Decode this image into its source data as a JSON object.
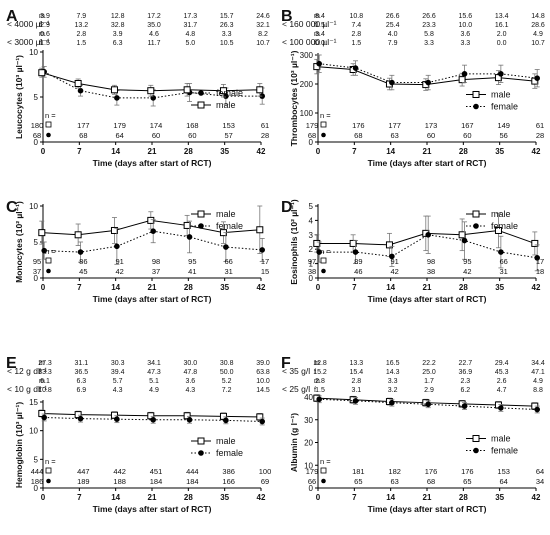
{
  "figure": {
    "x_label": "Time (days after start of RCT)",
    "x_ticks": [
      0,
      7,
      14,
      21,
      28,
      35,
      42
    ],
    "x_tick_labels": [
      "0",
      "7",
      "14",
      "21",
      "28",
      "35",
      "42"
    ],
    "n_label": "n ="
  },
  "chart_data": [
    {
      "id": "A",
      "letter": "A",
      "type": "line",
      "ylabel": "Leucocytes (10³ µl⁻¹)",
      "ylim": [
        0,
        10
      ],
      "y_ticks": [
        0,
        5,
        10
      ],
      "y_tick_labels": [
        "0",
        "5",
        "10"
      ],
      "legend_position": "middle-right",
      "series": [
        {
          "name": "female",
          "marker": "filled-circle",
          "line": "dotted",
          "x": [
            0,
            7,
            14,
            21,
            28,
            35,
            42
          ],
          "y": [
            7.8,
            5.7,
            4.9,
            4.9,
            5.5,
            5.1,
            5.1
          ],
          "err": [
            0.6,
            0.6,
            0.8,
            0.9,
            1.0,
            0.9,
            0.9
          ]
        },
        {
          "name": "male",
          "marker": "open-square",
          "line": "solid",
          "x": [
            0,
            7,
            14,
            21,
            28,
            35,
            42
          ],
          "y": [
            7.7,
            6.5,
            5.8,
            5.7,
            5.8,
            5.7,
            5.8
          ],
          "err": [
            0.5,
            0.5,
            0.5,
            0.6,
            0.7,
            0.7,
            0.7
          ]
        }
      ],
      "n_male": [
        "180",
        "177",
        "179",
        "174",
        "168",
        "153",
        "61"
      ],
      "n_female": [
        "68",
        "68",
        "64",
        "60",
        "60",
        "57",
        "28"
      ],
      "pct_rows": [
        {
          "label": "< 4000 µl⁻¹",
          "rows": [
            {
              "sex": "m",
              "values": [
                "3.9",
                "7.9",
                "12.8",
                "17.2",
                "17.3",
                "15.7",
                "24.6"
              ]
            },
            {
              "sex": "f",
              "values": [
                "2.9",
                "13.2",
                "32.8",
                "35.0",
                "31.7",
                "26.3",
                "32.1"
              ]
            }
          ]
        },
        {
          "label": "< 3000 µl⁻¹",
          "rows": [
            {
              "sex": "m",
              "values": [
                "0.6",
                "2.8",
                "3.9",
                "4.6",
                "4.8",
                "3.3",
                "8.2"
              ]
            },
            {
              "sex": "f",
              "values": [
                "1.5",
                "1.5",
                "6.3",
                "11.7",
                "5.0",
                "10.5",
                "10.7"
              ]
            }
          ]
        }
      ]
    },
    {
      "id": "B",
      "letter": "B",
      "type": "line",
      "ylabel": "Thrombocytes (10³ µl⁻¹)",
      "ylim": [
        0,
        300
      ],
      "y_ticks": [
        0,
        100,
        200,
        300
      ],
      "y_tick_labels": [
        "0",
        "100",
        "200",
        "300"
      ],
      "legend_position": "middle-right",
      "series": [
        {
          "name": "male",
          "marker": "open-square",
          "line": "solid",
          "x": [
            0,
            7,
            14,
            21,
            28,
            35,
            42
          ],
          "y": [
            260,
            250,
            200,
            198,
            215,
            222,
            210
          ],
          "err": [
            25,
            20,
            20,
            20,
            22,
            24,
            25
          ]
        },
        {
          "name": "female",
          "marker": "filled-circle",
          "line": "dotted",
          "x": [
            0,
            7,
            14,
            21,
            28,
            35,
            42
          ],
          "y": [
            270,
            255,
            205,
            205,
            235,
            235,
            220
          ],
          "err": [
            30,
            25,
            25,
            25,
            30,
            30,
            30
          ]
        }
      ],
      "n_male": [
        "179",
        "176",
        "177",
        "173",
        "167",
        "149",
        "61"
      ],
      "n_female": [
        "68",
        "68",
        "63",
        "60",
        "60",
        "56",
        "28"
      ],
      "pct_rows": [
        {
          "label": "< 160 000 µl⁻¹",
          "rows": [
            {
              "sex": "m",
              "values": [
                "8.4",
                "10.8",
                "26.6",
                "26.6",
                "15.6",
                "13.4",
                "14.8"
              ]
            },
            {
              "sex": "f",
              "values": [
                "1.5",
                "7.4",
                "25.4",
                "23.3",
                "10.0",
                "16.1",
                "28.6"
              ]
            }
          ]
        },
        {
          "label": "< 100 000 µl⁻¹",
          "rows": [
            {
              "sex": "m",
              "values": [
                "3.4",
                "2.8",
                "4.0",
                "5.8",
                "3.6",
                "2.0",
                "4.9"
              ]
            },
            {
              "sex": "f",
              "values": [
                "0.0",
                "1.5",
                "7.9",
                "3.3",
                "3.3",
                "0.0",
                "10.7"
              ]
            }
          ]
        }
      ]
    },
    {
      "id": "C",
      "letter": "C",
      "type": "line",
      "ylabel": "Monocytes (10² µl⁻¹)",
      "ylim": [
        0,
        10
      ],
      "y_ticks": [
        0,
        5,
        10
      ],
      "y_tick_labels": [
        "0",
        "5",
        "10"
      ],
      "legend_position": "top-right",
      "series": [
        {
          "name": "male",
          "marker": "open-square",
          "line": "solid",
          "x": [
            0,
            7,
            14,
            21,
            28,
            35,
            42
          ],
          "y": [
            6.3,
            6.0,
            6.6,
            8.0,
            7.3,
            6.3,
            6.7
          ],
          "err": [
            1.6,
            1.5,
            1.8,
            1.2,
            1.4,
            1.5,
            3.3
          ]
        },
        {
          "name": "female",
          "marker": "filled-circle",
          "line": "dotted",
          "x": [
            0,
            7,
            14,
            21,
            28,
            35,
            42
          ],
          "y": [
            3.8,
            3.6,
            4.4,
            6.5,
            5.7,
            4.3,
            3.9
          ],
          "err": [
            1.2,
            1.4,
            2.5,
            1.6,
            2.2,
            2.0,
            1.6
          ]
        }
      ],
      "n_male": [
        "95",
        "86",
        "91",
        "98",
        "95",
        "66",
        "17"
      ],
      "n_female": [
        "37",
        "45",
        "42",
        "37",
        "41",
        "31",
        "15"
      ],
      "pct_rows": []
    },
    {
      "id": "D",
      "letter": "D",
      "type": "line",
      "ylabel": "Eosinophils (10² µl⁻¹)",
      "ylim": [
        0,
        5
      ],
      "y_ticks": [
        0,
        1,
        2,
        3,
        4,
        5
      ],
      "y_tick_labels": [
        "0",
        "1",
        "2",
        "3",
        "4",
        "5"
      ],
      "legend_position": "top-right",
      "series": [
        {
          "name": "male",
          "marker": "open-square",
          "line": "solid",
          "x": [
            0,
            7,
            14,
            21,
            28,
            35,
            42
          ],
          "y": [
            2.4,
            2.4,
            2.3,
            3.1,
            3.0,
            3.3,
            2.4
          ],
          "err": [
            0.6,
            0.6,
            0.8,
            1.2,
            1.1,
            1.2,
            0.8
          ]
        },
        {
          "name": "female",
          "marker": "filled-circle",
          "line": "dotted",
          "x": [
            0,
            7,
            14,
            21,
            28,
            35,
            42
          ],
          "y": [
            1.8,
            1.8,
            1.5,
            3.0,
            2.6,
            1.8,
            1.4
          ],
          "err": [
            0.7,
            0.8,
            0.7,
            1.3,
            1.3,
            1.1,
            0.9
          ]
        }
      ],
      "n_male": [
        "97",
        "89",
        "91",
        "98",
        "95",
        "66",
        "17"
      ],
      "n_female": [
        "38",
        "46",
        "42",
        "38",
        "42",
        "31",
        "18"
      ],
      "pct_rows": []
    },
    {
      "id": "E",
      "letter": "E",
      "type": "line",
      "ylabel": "Hemoglobin (10³ µl⁻¹)",
      "ylim": [
        0,
        15
      ],
      "y_ticks": [
        0,
        5,
        10,
        15
      ],
      "y_tick_labels": [
        "0",
        "5",
        "10",
        "15"
      ],
      "legend_position": "middle-right",
      "series": [
        {
          "name": "male",
          "marker": "open-square",
          "line": "solid",
          "x": [
            0,
            7,
            14,
            21,
            28,
            35,
            42
          ],
          "y": [
            13.0,
            12.8,
            12.7,
            12.6,
            12.6,
            12.5,
            12.4
          ],
          "err": [
            0.6,
            0.6,
            0.6,
            0.6,
            0.6,
            0.6,
            0.6
          ]
        },
        {
          "name": "female",
          "marker": "filled-circle",
          "line": "dotted",
          "x": [
            0,
            7,
            14,
            21,
            28,
            35,
            42
          ],
          "y": [
            12.3,
            12.1,
            12.0,
            11.9,
            11.9,
            11.8,
            11.6
          ],
          "err": [
            0.6,
            0.6,
            0.6,
            0.6,
            0.6,
            0.6,
            0.6
          ]
        }
      ],
      "n_male": [
        "444",
        "447",
        "442",
        "451",
        "444",
        "386",
        "100"
      ],
      "n_female": [
        "186",
        "189",
        "188",
        "184",
        "184",
        "166",
        "69"
      ],
      "pct_rows": [
        {
          "label": "< 12 g dl⁻¹",
          "rows": [
            {
              "sex": "m",
              "values": [
                "27.3",
                "31.1",
                "30.3",
                "34.1",
                "30.0",
                "30.8",
                "39.0"
              ]
            },
            {
              "sex": "f",
              "values": [
                "33.3",
                "36.5",
                "39.4",
                "47.3",
                "47.8",
                "50.0",
                "63.8"
              ]
            }
          ]
        },
        {
          "label": "< 10 g dl⁻¹",
          "rows": [
            {
              "sex": "m",
              "values": [
                "6.1",
                "6.3",
                "5.7",
                "5.1",
                "3.6",
                "5.2",
                "10.0"
              ]
            },
            {
              "sex": "f",
              "values": [
                "10.8",
                "6.9",
                "4.3",
                "4.9",
                "4.3",
                "7.2",
                "14.5"
              ]
            }
          ]
        }
      ]
    },
    {
      "id": "F",
      "letter": "F",
      "type": "line",
      "ylabel": "Albumin (g l⁻¹)",
      "ylim": [
        0,
        40
      ],
      "y_ticks": [
        0,
        10,
        20,
        30,
        40
      ],
      "y_tick_labels": [
        "0",
        "10",
        "20",
        "30",
        "40"
      ],
      "legend_position": "middle-right",
      "series": [
        {
          "name": "male",
          "marker": "open-square",
          "line": "solid",
          "x": [
            0,
            7,
            14,
            21,
            28,
            35,
            42
          ],
          "y": [
            39.5,
            38.8,
            38.0,
            37.5,
            37.0,
            36.5,
            36.0
          ],
          "err": [
            1.5,
            1.5,
            1.5,
            1.5,
            1.5,
            1.5,
            1.5
          ]
        },
        {
          "name": "female",
          "marker": "filled-circle",
          "line": "dotted",
          "x": [
            0,
            7,
            14,
            21,
            28,
            35,
            42
          ],
          "y": [
            39.0,
            38.3,
            37.5,
            36.8,
            36.0,
            35.2,
            34.5
          ],
          "err": [
            1.5,
            1.5,
            1.5,
            1.5,
            1.5,
            1.5,
            1.5
          ]
        }
      ],
      "n_male": [
        "179",
        "181",
        "182",
        "176",
        "176",
        "153",
        "64"
      ],
      "n_female": [
        "66",
        "65",
        "63",
        "68",
        "65",
        "64",
        "34"
      ],
      "pct_rows": [
        {
          "label": "< 35 g/l",
          "rows": [
            {
              "sex": "m",
              "values": [
                "12.8",
                "13.3",
                "16.5",
                "22.2",
                "22.7",
                "29.4",
                "34.4"
              ]
            },
            {
              "sex": "f",
              "values": [
                "15.2",
                "15.4",
                "14.3",
                "25.0",
                "36.9",
                "45.3",
                "47.1"
              ]
            }
          ]
        },
        {
          "label": "< 25 g/l",
          "rows": [
            {
              "sex": "m",
              "values": [
                "2.8",
                "2.8",
                "3.3",
                "1.7",
                "2.3",
                "2.6",
                "4.9"
              ]
            },
            {
              "sex": "f",
              "values": [
                "1.5",
                "3.1",
                "3.2",
                "2.9",
                "6.2",
                "4.7",
                "8.8"
              ]
            }
          ]
        }
      ]
    }
  ]
}
